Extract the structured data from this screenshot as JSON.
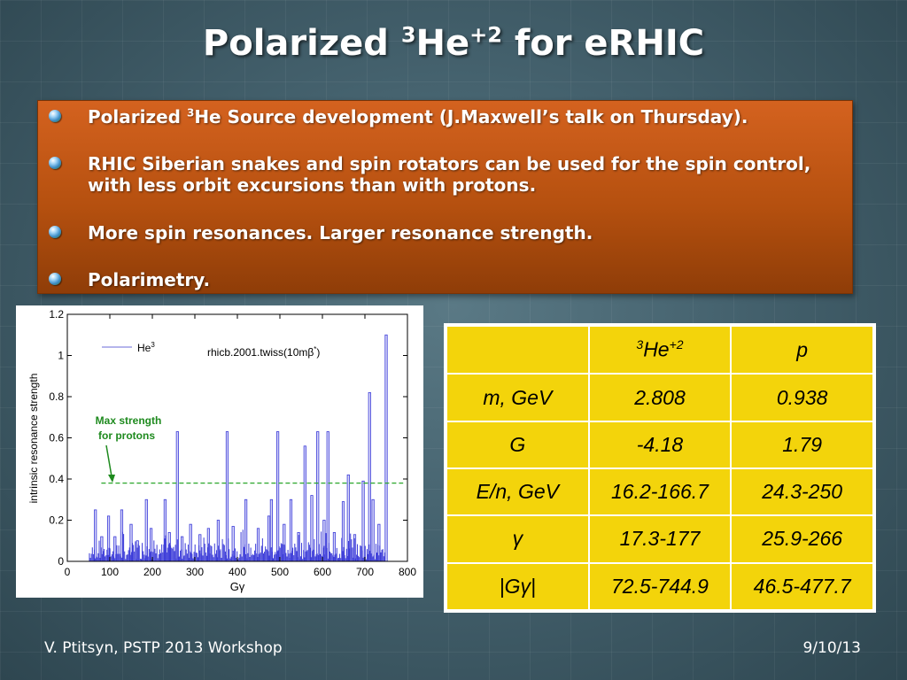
{
  "slide": {
    "title_pre": "Polarized ",
    "title_sup": "3",
    "title_mid": "He",
    "title_sup2": "+2",
    "title_post": " for eRHIC",
    "footer_left": "V. Ptitsyn, PSTP 2013 Workshop",
    "footer_right": "9/10/13"
  },
  "bullets": [
    {
      "pre": "Polarized ",
      "sup": "3",
      "post": "He Source development (J.Maxwell’s talk on Thursday)."
    },
    {
      "pre": "RHIC Siberian snakes and spin rotators can be used for the spin control, with less orbit excursions than with protons.",
      "sup": "",
      "post": ""
    },
    {
      "pre": "More spin resonances. Larger resonance strength.",
      "sup": "",
      "post": ""
    },
    {
      "pre": "Polarimetry.",
      "sup": "",
      "post": ""
    }
  ],
  "table": {
    "header": [
      {
        "pre": "",
        "sup": "",
        "main": "",
        "sup2": ""
      },
      {
        "pre": "",
        "sup": "3",
        "main": "He",
        "sup2": "+2"
      },
      {
        "pre": "",
        "sup": "",
        "main": "p",
        "sup2": ""
      }
    ],
    "rows": [
      [
        "m, GeV",
        "2.808",
        "0.938"
      ],
      [
        "G",
        "-4.18",
        "1.79"
      ],
      [
        "E/n, GeV",
        "16.2-166.7",
        "24.3-250"
      ],
      [
        "γ",
        "17.3-177",
        "25.9-266"
      ],
      [
        "|Gγ|",
        "72.5-744.9",
        "46.5-477.7"
      ]
    ]
  },
  "chart_data": {
    "type": "bar",
    "xlabel": "Gγ",
    "ylabel": "intrinsic resonance strength",
    "xlim": [
      0,
      800
    ],
    "ylim": [
      0,
      1.2
    ],
    "xticks": [
      "0",
      "100",
      "200",
      "300",
      "400",
      "500",
      "600",
      "700",
      "800"
    ],
    "yticks": [
      "0",
      "0.2",
      "0.4",
      "0.6",
      "0.8",
      "1",
      "1.2"
    ],
    "legend": "He",
    "legend_sup": "3",
    "annotation_title": "rhicb.2001.twiss(10mβ",
    "annotation_title_sup": "*",
    "annotation_title_end": ")",
    "proton_max_label_1": "Max strength",
    "proton_max_label_2": "for protons",
    "proton_max_level": 0.38,
    "bar_color": "#3a3ad8",
    "line_color": "#2aa62a",
    "peaks": [
      {
        "x": 66,
        "y": 0.25
      },
      {
        "x": 81,
        "y": 0.12
      },
      {
        "x": 97,
        "y": 0.22
      },
      {
        "x": 112,
        "y": 0.12
      },
      {
        "x": 128,
        "y": 0.25
      },
      {
        "x": 150,
        "y": 0.18
      },
      {
        "x": 165,
        "y": 0.1
      },
      {
        "x": 186,
        "y": 0.3
      },
      {
        "x": 197,
        "y": 0.16
      },
      {
        "x": 230,
        "y": 0.3
      },
      {
        "x": 240,
        "y": 0.14
      },
      {
        "x": 259,
        "y": 0.63
      },
      {
        "x": 270,
        "y": 0.12
      },
      {
        "x": 290,
        "y": 0.18
      },
      {
        "x": 312,
        "y": 0.13
      },
      {
        "x": 332,
        "y": 0.16
      },
      {
        "x": 355,
        "y": 0.2
      },
      {
        "x": 376,
        "y": 0.63
      },
      {
        "x": 390,
        "y": 0.17
      },
      {
        "x": 420,
        "y": 0.3
      },
      {
        "x": 449,
        "y": 0.16
      },
      {
        "x": 474,
        "y": 0.22
      },
      {
        "x": 480,
        "y": 0.3
      },
      {
        "x": 495,
        "y": 0.63
      },
      {
        "x": 510,
        "y": 0.18
      },
      {
        "x": 526,
        "y": 0.3
      },
      {
        "x": 544,
        "y": 0.14
      },
      {
        "x": 559,
        "y": 0.56
      },
      {
        "x": 575,
        "y": 0.32
      },
      {
        "x": 589,
        "y": 0.63
      },
      {
        "x": 604,
        "y": 0.2
      },
      {
        "x": 613,
        "y": 0.63
      },
      {
        "x": 628,
        "y": 0.14
      },
      {
        "x": 649,
        "y": 0.29
      },
      {
        "x": 661,
        "y": 0.42
      },
      {
        "x": 676,
        "y": 0.13
      },
      {
        "x": 696,
        "y": 0.39
      },
      {
        "x": 711,
        "y": 0.82
      },
      {
        "x": 719,
        "y": 0.3
      },
      {
        "x": 733,
        "y": 0.18
      },
      {
        "x": 750,
        "y": 1.1
      }
    ]
  }
}
